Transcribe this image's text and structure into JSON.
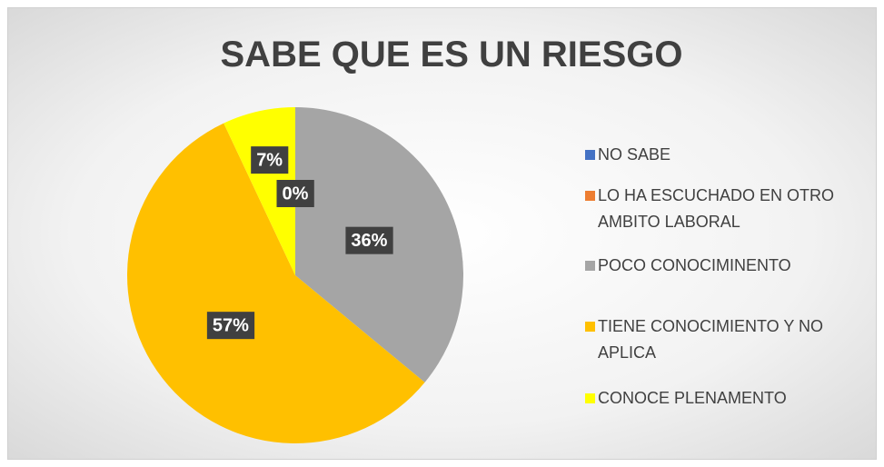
{
  "chart_data": {
    "type": "pie",
    "title": "SABE QUE ES UN RIESGO",
    "categories": [
      "NO SABE",
      "LO HA ESCUCHADO EN OTRO AMBITO LABORAL",
      "POCO CONOCIMINENTO",
      "TIENE CONOCIMIENTO Y NO APLICA",
      "CONOCE PLENAMENTO"
    ],
    "values": [
      0,
      0,
      36,
      57,
      7
    ],
    "value_labels": [
      "0%",
      "0%",
      "36%",
      "57%",
      "7%"
    ],
    "colors": [
      "#4472c4",
      "#ed7d31",
      "#a5a5a5",
      "#ffc000",
      "#ffff00"
    ],
    "legend": "right"
  }
}
